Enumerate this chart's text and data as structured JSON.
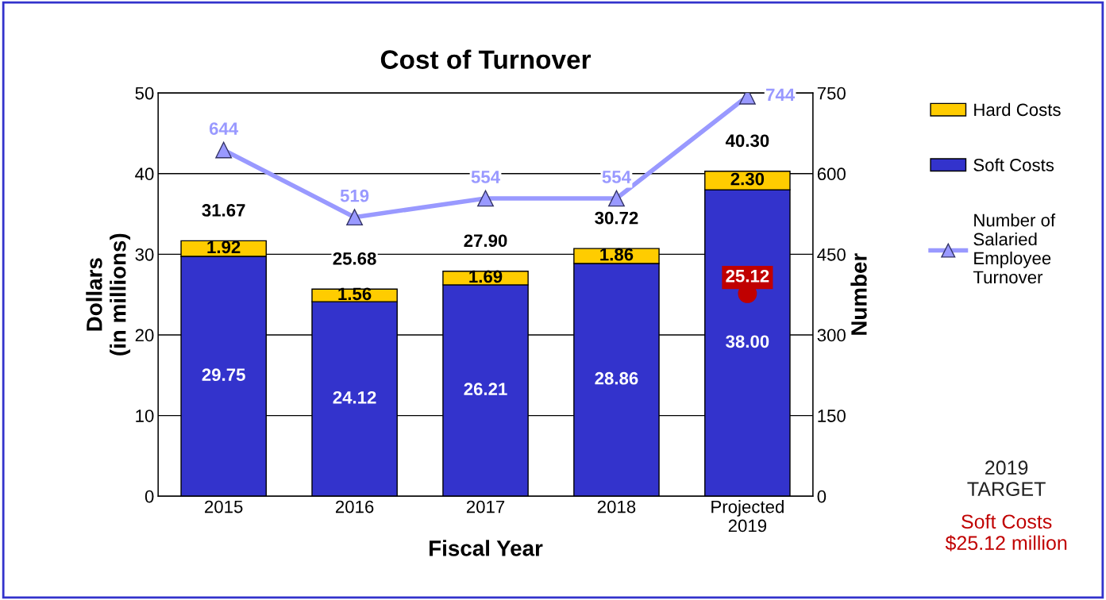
{
  "chart_data": {
    "type": "bar",
    "title": "Cost of Turnover",
    "xlabel": "Fiscal Year",
    "ylabel": "Dollars\n(in millions)",
    "y2label": "Number",
    "categories": [
      "2015",
      "2016",
      "2017",
      "2018",
      "Projected\n2019"
    ],
    "stacked": true,
    "ylim": [
      0,
      50
    ],
    "yticks": [
      0,
      10,
      20,
      30,
      40,
      50
    ],
    "y2lim": [
      0,
      750
    ],
    "y2ticks": [
      0,
      150,
      300,
      450,
      600,
      750
    ],
    "grid": "y",
    "legend": "right",
    "series": [
      {
        "name": "Soft Costs",
        "color": "#3333cc",
        "values": [
          29.75,
          24.12,
          26.21,
          28.86,
          38.0
        ],
        "value_labels": [
          "29.75",
          "24.12",
          "26.21",
          "28.86",
          "38.00"
        ]
      },
      {
        "name": "Hard Costs",
        "color": "#ffcc00",
        "values": [
          1.92,
          1.56,
          1.69,
          1.86,
          2.3
        ],
        "value_labels": [
          "1.92",
          "1.56",
          "1.69",
          "1.86",
          "2.30"
        ]
      },
      {
        "name": "Number of Salaried Employee Turnover",
        "type": "line",
        "axis": "y2",
        "color": "#9999ff",
        "marker": "triangle",
        "values": [
          644,
          519,
          554,
          554,
          744
        ],
        "value_labels": [
          "644",
          "519",
          "554",
          "554",
          "744"
        ]
      },
      {
        "type": "scatter",
        "color": "#c00000",
        "marker": "circle",
        "values": [
          null,
          null,
          null,
          null,
          25.12
        ],
        "value_labels": [
          null,
          null,
          null,
          null,
          "25.12"
        ]
      }
    ],
    "totals": [
      "31.67",
      "25.68",
      "27.90",
      "30.72",
      "40.30"
    ],
    "annotations": [
      "2019\nTARGET",
      "Soft Costs\n$25.12 million"
    ]
  }
}
